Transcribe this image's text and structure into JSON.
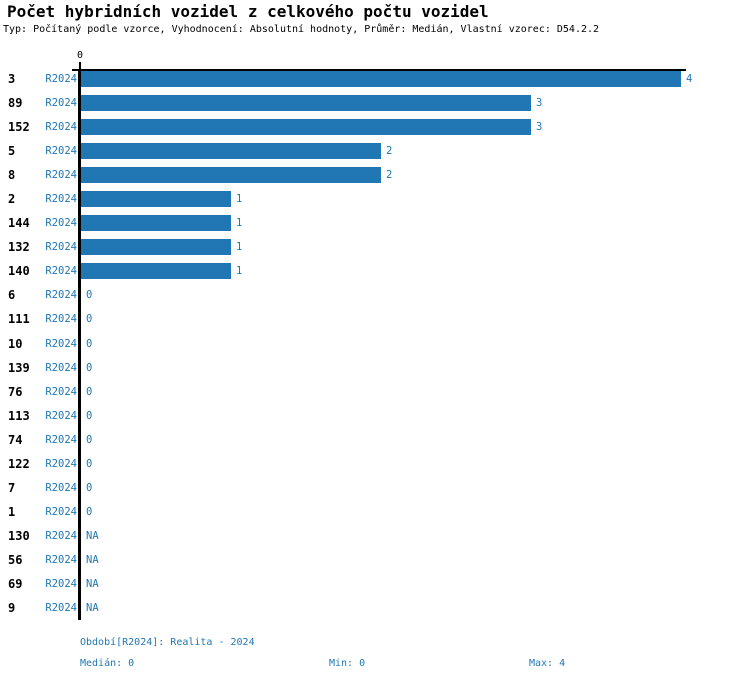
{
  "title": "Počet hybridních vozidel z celkového počtu vozidel",
  "subtitle": "Typ: Počítaný podle vzorce, Vyhodnocení: Absolutní hodnoty, Průměr: Medián, Vlastní vzorec: D54.2.2",
  "colors": {
    "accent": "#2077b4",
    "bar": "#2077b4",
    "axis": "#000000",
    "text": "#000000",
    "background": "#ffffff"
  },
  "axis": {
    "zero_tick_label": "0"
  },
  "chart_data": {
    "type": "bar",
    "orientation": "horizontal",
    "title": "Počet hybridních vozidel z celkového počtu vozidel",
    "categories": [
      "3",
      "89",
      "152",
      "5",
      "8",
      "2",
      "144",
      "132",
      "140",
      "6",
      "111",
      "10",
      "139",
      "76",
      "113",
      "74",
      "122",
      "7",
      "1",
      "130",
      "56",
      "69",
      "9"
    ],
    "period_label": "R2024",
    "values": [
      4,
      3,
      3,
      2,
      2,
      1,
      1,
      1,
      1,
      0,
      0,
      0,
      0,
      0,
      0,
      0,
      0,
      0,
      0,
      null,
      null,
      null,
      null
    ],
    "value_labels": [
      "4",
      "3",
      "3",
      "2",
      "2",
      "1",
      "1",
      "1",
      "1",
      "0",
      "0",
      "0",
      "0",
      "0",
      "0",
      "0",
      "0",
      "0",
      "0",
      "NA",
      "NA",
      "NA",
      "NA"
    ],
    "xlabel": "",
    "ylabel": "",
    "xlim": [
      0,
      4
    ],
    "x_ticks": [
      0
    ],
    "grid": false,
    "legend": false
  },
  "footer": {
    "period": "Období[R2024]: Realita - 2024",
    "median": "Medián: 0",
    "min": "Min: 0",
    "max": "Max: 4"
  }
}
